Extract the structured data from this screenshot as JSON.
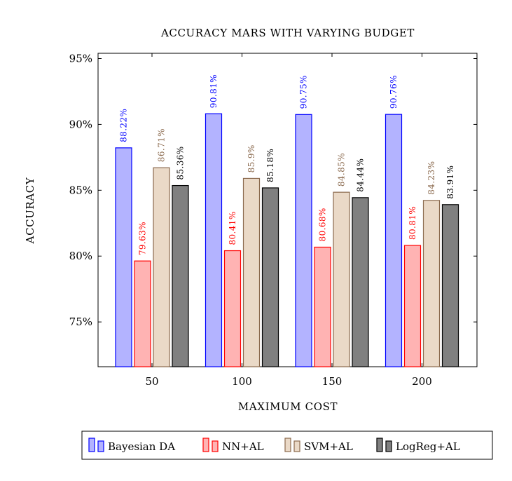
{
  "chart_data": {
    "type": "bar",
    "title": "ACCURACY MARS WITH VARYING BUDGET",
    "xlabel": "MAXIMUM COST",
    "ylabel": "ACCURACY",
    "categories": [
      "50",
      "100",
      "150",
      "200"
    ],
    "ylim": [
      71.6,
      95.4
    ],
    "yticks": [
      75,
      80,
      85,
      90,
      95
    ],
    "ytick_labels": [
      "75%",
      "80%",
      "85%",
      "90%",
      "95%"
    ],
    "grid": false,
    "legend_position": "bottom",
    "series": [
      {
        "name": "Bayesian DA",
        "values": [
          88.22,
          90.81,
          90.75,
          90.76
        ],
        "labels": [
          "88.22%",
          "90.81%",
          "90.75%",
          "90.76%"
        ],
        "fill": "#b3b3ff",
        "stroke": "#0000ff",
        "label_color": "#0000ff"
      },
      {
        "name": "NN+AL",
        "values": [
          79.63,
          80.41,
          80.68,
          80.81
        ],
        "labels": [
          "79.63%",
          "80.41%",
          "80.68%",
          "80.81%"
        ],
        "fill": "#ffb3b3",
        "stroke": "#ff0000",
        "label_color": "#ff0000"
      },
      {
        "name": "SVM+AL",
        "values": [
          86.71,
          85.9,
          84.85,
          84.23
        ],
        "labels": [
          "86.71%",
          "85.9%",
          "84.85%",
          "84.23%"
        ],
        "fill": "#ead9c7",
        "stroke": "#8b6a4e",
        "label_color": "#8b6a4e"
      },
      {
        "name": "LogReg+AL",
        "values": [
          85.36,
          85.18,
          84.44,
          83.91
        ],
        "labels": [
          "85.36%",
          "85.18%",
          "84.44%",
          "83.91%"
        ],
        "fill": "#808080",
        "stroke": "#000000",
        "label_color": "#000000"
      }
    ]
  }
}
